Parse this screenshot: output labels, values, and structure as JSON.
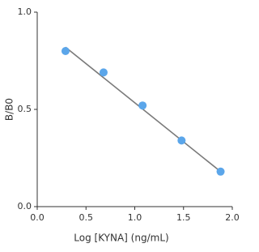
{
  "chart_data": {
    "type": "scatter",
    "x_label": "Log [KYNA] (ng/mL)",
    "y_label": "B/B0",
    "series": [
      {
        "color": "#5ba6ea",
        "x": [
          0.29,
          0.68,
          1.08,
          1.48,
          1.88
        ],
        "values": [
          0.8,
          0.69,
          0.52,
          0.34,
          0.18
        ]
      }
    ],
    "fit_line": {
      "color": "#7a7a7a",
      "x": [
        0.29,
        1.88
      ],
      "values": [
        0.82,
        0.18
      ]
    },
    "xlim": [
      0,
      2
    ],
    "ylim": [
      0,
      1
    ],
    "xticks": [
      {
        "value": 0,
        "label": "0.0"
      },
      0.5,
      {
        "value": 1,
        "label": "1.0"
      },
      1.5,
      {
        "value": 2,
        "label": "2.0"
      }
    ],
    "yticks": [
      {
        "value": 0,
        "label": "0.0"
      },
      0.5,
      {
        "value": 1,
        "label": "1.0"
      }
    ],
    "grid": false
  }
}
